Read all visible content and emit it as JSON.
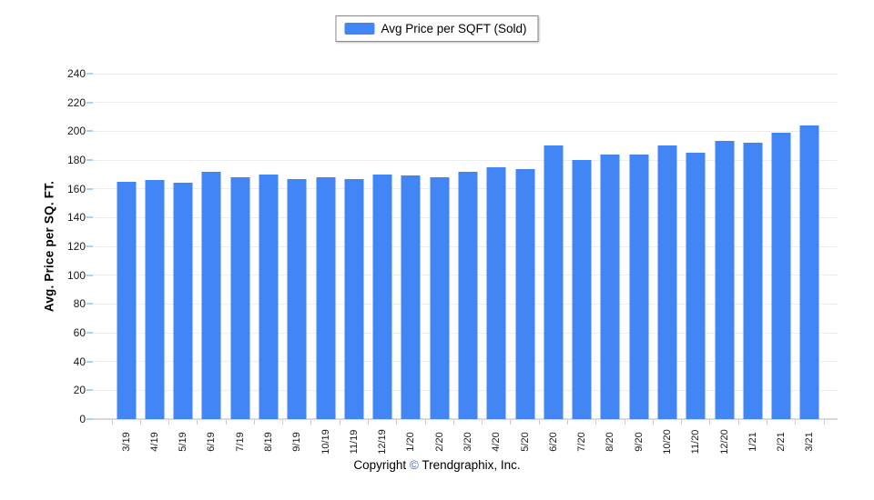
{
  "legend": {
    "label": "Avg Price per SQFT (Sold)"
  },
  "y_axis": {
    "title": "Avg. Price per SQ. FT."
  },
  "footer": {
    "prefix": "Copyright ",
    "symbol": "©",
    "suffix": " Trendgraphix, Inc."
  },
  "colors": {
    "bar": "#4285f4",
    "gridline": "#ededed",
    "axis_line": "#d9d9d9",
    "y_tick_mark": "#a8d5ef",
    "x_tick_mark": "#c9c9c9",
    "copyright_symbol": "#3b6fc4"
  },
  "chart_data": {
    "type": "bar",
    "title": "",
    "series_name": "Avg Price per SQFT (Sold)",
    "categories": [
      "3/19",
      "4/19",
      "5/19",
      "6/19",
      "7/19",
      "8/19",
      "9/19",
      "10/19",
      "11/19",
      "12/19",
      "1/20",
      "2/20",
      "3/20",
      "4/20",
      "5/20",
      "6/20",
      "7/20",
      "8/20",
      "9/20",
      "10/20",
      "11/20",
      "12/20",
      "1/21",
      "2/21",
      "3/21"
    ],
    "values": [
      165,
      166,
      164,
      172,
      168,
      170,
      167,
      168,
      167,
      170,
      169,
      168,
      172,
      175,
      174,
      190,
      180,
      184,
      184,
      190,
      185,
      193,
      192,
      199,
      204
    ],
    "xlabel": "",
    "ylabel": "Avg. Price per SQ. FT.",
    "ylim": [
      0,
      240
    ],
    "ytick_step": 20,
    "grid": "horizontal",
    "legend_position": "top-center",
    "bar_color": "#4285f4"
  }
}
